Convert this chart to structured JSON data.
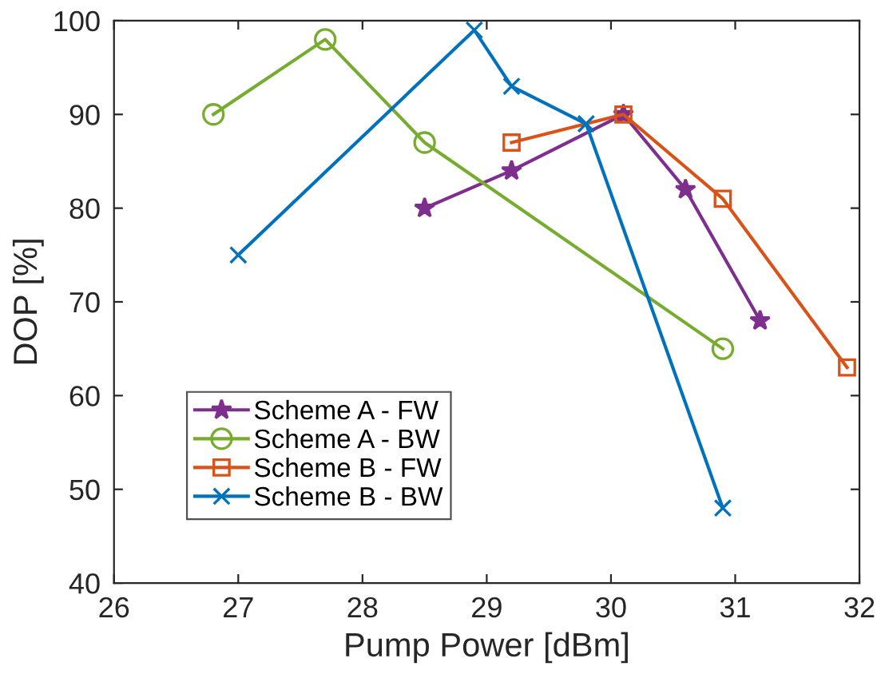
{
  "chart_data": {
    "type": "line",
    "xlabel": "Pump Power [dBm]",
    "ylabel": "DOP [%]",
    "xlim": [
      26,
      32
    ],
    "xticks": [
      26,
      27,
      28,
      29,
      30,
      31,
      32
    ],
    "ylim": [
      40,
      100
    ],
    "yticks": [
      40,
      50,
      60,
      70,
      80,
      90,
      100
    ],
    "grid": false,
    "legend": "bottom left",
    "series": [
      {
        "name": "Scheme A - FW",
        "color": "#7e2f8e",
        "marker": "star",
        "x": [
          28.5,
          29.2,
          30.1,
          30.6,
          31.2
        ],
        "values": [
          80,
          84,
          90,
          82,
          68
        ]
      },
      {
        "name": "Scheme A - BW",
        "color": "#77ac30",
        "marker": "circle",
        "x": [
          26.8,
          27.7,
          28.5,
          30.9
        ],
        "values": [
          90,
          98,
          87,
          65
        ]
      },
      {
        "name": "Scheme B - FW",
        "color": "#d95319",
        "marker": "square",
        "x": [
          29.2,
          30.1,
          30.9,
          31.9
        ],
        "values": [
          87,
          90,
          81,
          63
        ]
      },
      {
        "name": "Scheme B - BW",
        "color": "#0072bd",
        "marker": "cross",
        "x": [
          27,
          28.9,
          29.2,
          29.8,
          30.9
        ],
        "values": [
          75,
          99,
          93,
          89,
          48
        ]
      }
    ]
  }
}
